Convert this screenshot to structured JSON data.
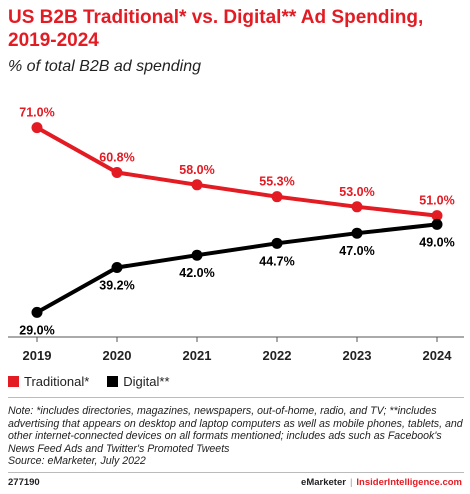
{
  "header": {
    "title": "US B2B Traditional* vs. Digital** Ad Spending, 2019-2024",
    "subtitle": "% of total B2B ad spending"
  },
  "colors": {
    "traditional": "#e31b23",
    "digital": "#000000",
    "brand": "#e31b23"
  },
  "chart_data": {
    "type": "line",
    "title": "US B2B Traditional* vs. Digital** Ad Spending, 2019-2024",
    "subtitle": "% of total B2B ad spending",
    "x": [
      "2019",
      "2020",
      "2021",
      "2022",
      "2023",
      "2024"
    ],
    "ylim": [
      25,
      75
    ],
    "grid": false,
    "legend_position": "bottom-left",
    "series": [
      {
        "name": "Traditional*",
        "values": [
          71.0,
          60.8,
          58.0,
          55.3,
          53.0,
          51.0
        ],
        "labels": [
          "71.0%",
          "60.8%",
          "58.0%",
          "55.3%",
          "53.0%",
          "51.0%"
        ]
      },
      {
        "name": "Digital**",
        "values": [
          29.0,
          39.2,
          42.0,
          44.7,
          47.0,
          49.0
        ],
        "labels": [
          "29.0%",
          "39.2%",
          "42.0%",
          "44.7%",
          "47.0%",
          "49.0%"
        ]
      }
    ]
  },
  "note": "Note: *includes directories, magazines, newspapers, out-of-home, radio, and TV; **includes advertising that appears on desktop and laptop computers as well as mobile phones, tablets, and other internet-connected devices on all formats mentioned; includes ads such as Facebook's News Feed Ads and Twitter's Promoted Tweets",
  "source": "Source: eMarketer, July 2022",
  "footer": {
    "chart_id": "277190",
    "brand_left": "eMarketer",
    "separator": "|",
    "brand_right": "InsiderIntelligence.com"
  }
}
